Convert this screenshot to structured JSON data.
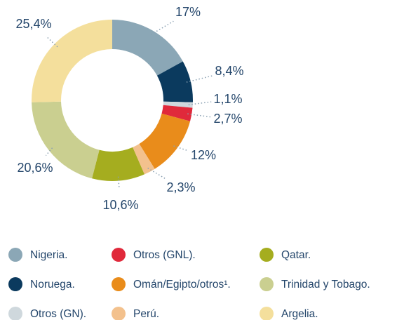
{
  "chart_data": {
    "type": "donut",
    "series": [
      {
        "name": "Nigeria.",
        "color": "#8ba7b6",
        "values": [
          17
        ],
        "value_labels": [
          "17%"
        ]
      },
      {
        "name": "Noruega.",
        "color": "#0b3a5e",
        "values": [
          8.4
        ],
        "value_labels": [
          "8,4%"
        ]
      },
      {
        "name": "Otros (GN).",
        "color": "#cfd8dd",
        "values": [
          1.1
        ],
        "value_labels": [
          "1,1%"
        ]
      },
      {
        "name": "Otros (GNL).",
        "color": "#e0293b",
        "values": [
          2.7
        ],
        "value_labels": [
          "2,7%"
        ]
      },
      {
        "name": "Omán/Egipto/otros¹.",
        "color": "#e98c1b",
        "values": [
          12
        ],
        "value_labels": [
          "12%"
        ]
      },
      {
        "name": "Perú.",
        "color": "#f3c18d",
        "values": [
          2.3
        ],
        "value_labels": [
          "2,3%"
        ]
      },
      {
        "name": "Qatar.",
        "color": "#a5ad1f",
        "values": [
          10.6
        ],
        "value_labels": [
          "10,6%"
        ]
      },
      {
        "name": "Trinidad y Tobago.",
        "color": "#cacf90",
        "values": [
          20.6
        ],
        "value_labels": [
          "20,6%"
        ]
      },
      {
        "name": "Argelia.",
        "color": "#f4df9c",
        "values": [
          25.4
        ],
        "value_labels": [
          "25,4%"
        ]
      }
    ]
  }
}
